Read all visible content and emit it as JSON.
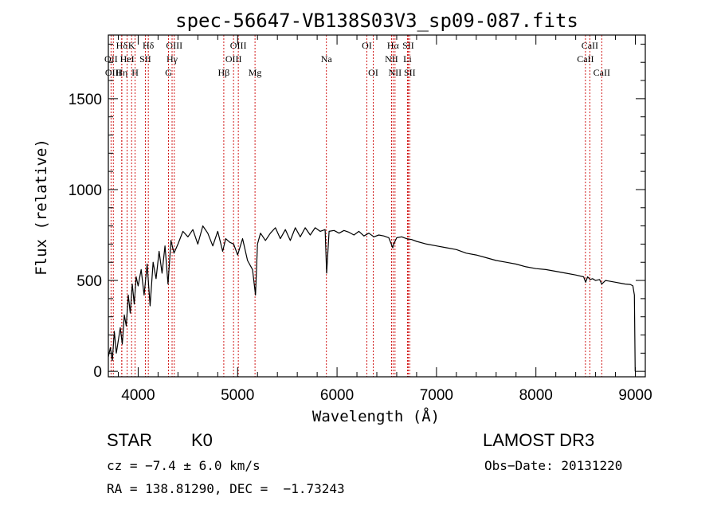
{
  "chart_data": {
    "type": "line",
    "title": "spec-56647-VB138S03V3_sp09-087.fits",
    "xlabel": "Wavelength (Å)",
    "ylabel": "Flux (relative)",
    "xlim": [
      3700,
      9100
    ],
    "ylim": [
      -30,
      1850
    ],
    "xticks": [
      4000,
      5000,
      6000,
      7000,
      8000,
      9000
    ],
    "yticks": [
      0,
      500,
      1000,
      1500
    ],
    "xtick_labels": [
      "4000",
      "5000",
      "6000",
      "7000",
      "8000",
      "9000"
    ],
    "ytick_labels": [
      "0",
      "500",
      "1000",
      "1500"
    ],
    "series": [
      {
        "name": "flux",
        "x": [
          3700,
          3720,
          3740,
          3760,
          3780,
          3800,
          3820,
          3840,
          3860,
          3880,
          3900,
          3920,
          3940,
          3960,
          3980,
          4000,
          4030,
          4060,
          4090,
          4120,
          4150,
          4180,
          4210,
          4240,
          4270,
          4300,
          4330,
          4360,
          4400,
          4450,
          4500,
          4550,
          4600,
          4650,
          4700,
          4750,
          4800,
          4850,
          4880,
          4920,
          4960,
          5000,
          5050,
          5100,
          5150,
          5180,
          5200,
          5230,
          5280,
          5330,
          5380,
          5430,
          5480,
          5530,
          5580,
          5630,
          5680,
          5730,
          5780,
          5830,
          5880,
          5895,
          5920,
          5970,
          6020,
          6070,
          6120,
          6170,
          6220,
          6270,
          6320,
          6370,
          6420,
          6470,
          6520,
          6560,
          6570,
          6600,
          6650,
          6700,
          6750,
          6800,
          6900,
          7000,
          7100,
          7200,
          7300,
          7400,
          7500,
          7600,
          7700,
          7800,
          7900,
          8000,
          8100,
          8200,
          8300,
          8400,
          8480,
          8500,
          8520,
          8545,
          8570,
          8600,
          8640,
          8662,
          8700,
          8750,
          8800,
          8850,
          8900,
          8950,
          8975,
          8990,
          8998
        ],
        "values": [
          80,
          130,
          60,
          220,
          100,
          170,
          240,
          150,
          310,
          250,
          420,
          320,
          480,
          370,
          520,
          470,
          560,
          420,
          590,
          360,
          600,
          510,
          660,
          540,
          690,
          480,
          720,
          650,
          700,
          770,
          740,
          780,
          700,
          800,
          760,
          690,
          770,
          660,
          730,
          710,
          700,
          640,
          730,
          610,
          560,
          420,
          700,
          760,
          720,
          760,
          790,
          730,
          780,
          720,
          790,
          740,
          790,
          750,
          790,
          770,
          780,
          540,
          770,
          775,
          760,
          775,
          765,
          750,
          770,
          745,
          760,
          740,
          750,
          745,
          735,
          680,
          700,
          735,
          740,
          730,
          725,
          715,
          700,
          690,
          680,
          670,
          650,
          640,
          625,
          610,
          600,
          590,
          575,
          565,
          560,
          550,
          540,
          530,
          520,
          490,
          520,
          505,
          510,
          500,
          505,
          480,
          500,
          495,
          490,
          485,
          480,
          478,
          470,
          420,
          0
        ]
      }
    ],
    "lines": [
      {
        "name": "Hδ",
        "x": 3835,
        "row": 0
      },
      {
        "name": "OII",
        "x": 3727,
        "row": 1
      },
      {
        "name": "OIII",
        "x": 3750,
        "row": 2
      },
      {
        "name": "Hη",
        "x": 3835,
        "row": 2
      },
      {
        "name": "HeI",
        "x": 3889,
        "row": 1
      },
      {
        "name": "K",
        "x": 3934,
        "row": 0
      },
      {
        "name": "H",
        "x": 3969,
        "row": 2
      },
      {
        "name": "SII",
        "x": 4072,
        "row": 1
      },
      {
        "name": "Hδ",
        "x": 4102,
        "row": 0
      },
      {
        "name": "OIII",
        "x": 4363,
        "row": 0
      },
      {
        "name": "Hγ",
        "x": 4341,
        "row": 1
      },
      {
        "name": "G",
        "x": 4305,
        "row": 2
      },
      {
        "name": "Hβ",
        "x": 4861,
        "row": 2
      },
      {
        "name": "OIII",
        "x": 5007,
        "row": 0
      },
      {
        "name": "OIII",
        "x": 4959,
        "row": 1
      },
      {
        "name": "Mg",
        "x": 5175,
        "row": 2
      },
      {
        "name": "Na",
        "x": 5893,
        "row": 1
      },
      {
        "name": "OI",
        "x": 6300,
        "row": 0
      },
      {
        "name": "OI",
        "x": 6364,
        "row": 2
      },
      {
        "name": "Hα",
        "x": 6563,
        "row": 0
      },
      {
        "name": "NII",
        "x": 6548,
        "row": 1
      },
      {
        "name": "NII",
        "x": 6583,
        "row": 2
      },
      {
        "name": "SII",
        "x": 6716,
        "row": 0
      },
      {
        "name": "Li",
        "x": 6708,
        "row": 1
      },
      {
        "name": "SII",
        "x": 6731,
        "row": 2
      },
      {
        "name": "CaII",
        "x": 8542,
        "row": 0
      },
      {
        "name": "CaII",
        "x": 8498,
        "row": 1
      },
      {
        "name": "CaII",
        "x": 8662,
        "row": 2
      }
    ],
    "line_color": "#cc0000",
    "spectrum_color": "#000000"
  },
  "info": {
    "object_class": "STAR",
    "subclass": "K0",
    "survey": "LAMOST DR3",
    "redshift": "cz = −7.4 ± 6.0 km/s",
    "obs_date": "Obs−Date: 20131220",
    "coords": "RA = 138.81290, DEC =  −1.73243"
  }
}
